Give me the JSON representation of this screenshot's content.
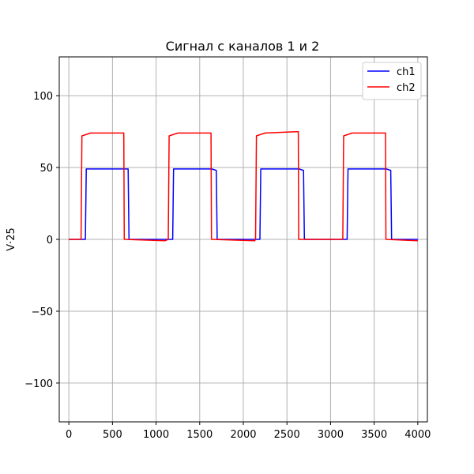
{
  "chart_data": {
    "type": "line",
    "title": "Сигнал с каналов 1 и 2",
    "xlabel": "",
    "ylabel": "V·25",
    "xlim": [
      -110,
      4110
    ],
    "ylim": [
      -127,
      127
    ],
    "xticks": [
      0,
      500,
      1000,
      1500,
      2000,
      2500,
      3000,
      3500,
      4000
    ],
    "yticks": [
      -100,
      -50,
      0,
      50,
      100
    ],
    "ytick_labels": [
      "−100",
      "−50",
      "0",
      "50",
      "100"
    ],
    "grid": true,
    "legend_position": "upper right",
    "series": [
      {
        "name": "ch1",
        "color": "#0000ff",
        "x": [
          0,
          190,
          200,
          640,
          680,
          690,
          1180,
          1190,
          1200,
          1640,
          1690,
          1700,
          2180,
          2190,
          2200,
          2640,
          2690,
          2700,
          3180,
          3190,
          3200,
          3640,
          3690,
          3700,
          4000
        ],
        "y": [
          0,
          0,
          49,
          49,
          49,
          0,
          0,
          0,
          49,
          49,
          48,
          0,
          0,
          0,
          49,
          49,
          48,
          0,
          0,
          0,
          49,
          49,
          48,
          0,
          0
        ]
      },
      {
        "name": "ch2",
        "color": "#ff0000",
        "x": [
          0,
          140,
          150,
          250,
          630,
          635,
          640,
          1100,
          1140,
          1150,
          1250,
          1630,
          1635,
          1640,
          2130,
          2140,
          2150,
          2250,
          2630,
          2635,
          2640,
          3130,
          3140,
          3150,
          3250,
          3630,
          3635,
          3640,
          4000
        ],
        "y": [
          0,
          0,
          72,
          74,
          74,
          0,
          0,
          -1,
          0,
          72,
          74,
          74,
          0,
          0,
          -1,
          0,
          72,
          74,
          75,
          0,
          0,
          0,
          0,
          72,
          74,
          74,
          0,
          0,
          -1
        ]
      }
    ]
  }
}
